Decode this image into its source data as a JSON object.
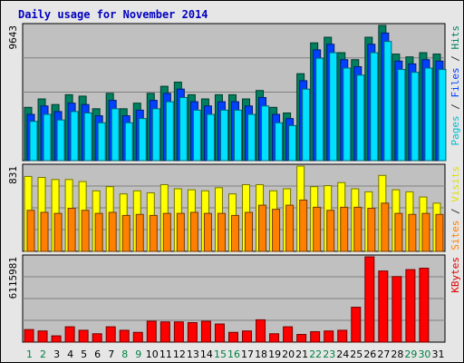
{
  "chart_data": {
    "type": "bar",
    "title": "Daily usage for November 2014",
    "categories": [
      "1",
      "2",
      "3",
      "4",
      "5",
      "6",
      "7",
      "8",
      "9",
      "10",
      "11",
      "12",
      "13",
      "14",
      "15",
      "16",
      "17",
      "18",
      "19",
      "20",
      "21",
      "22",
      "23",
      "24",
      "25",
      "26",
      "27",
      "28",
      "29",
      "30",
      "31"
    ],
    "weekend_days": [
      "1",
      "2",
      "8",
      "9",
      "15",
      "16",
      "22",
      "23",
      "29",
      "30"
    ],
    "panels": [
      {
        "name": "pages-files-hits",
        "ymax_label": "9643",
        "ymax": 9643,
        "right_labels": [
          {
            "text": "Pages",
            "color": "#00c0d0"
          },
          {
            "text": " / ",
            "color": "#333333"
          },
          {
            "text": "Files",
            "color": "#0040ff"
          },
          {
            "text": " / ",
            "color": "#333333"
          },
          {
            "text": "Hits",
            "color": "#008060"
          }
        ],
        "series": [
          {
            "name": "Hits",
            "color": "#008060",
            "values": [
              3800,
              4400,
              4000,
              4700,
              4600,
              3700,
              4800,
              3700,
              4100,
              4800,
              5300,
              5600,
              4700,
              4400,
              4700,
              4700,
              4400,
              5000,
              3800,
              3400,
              6200,
              8400,
              8800,
              7700,
              7200,
              8800,
              9643,
              7600,
              7400,
              7700,
              7600
            ]
          },
          {
            "name": "Files",
            "color": "#0040ff",
            "values": [
              3300,
              3900,
              3500,
              4100,
              4000,
              3200,
              4300,
              3200,
              3600,
              4300,
              4800,
              5100,
              4200,
              3900,
              4200,
              4200,
              3900,
              4500,
              3300,
              3000,
              5700,
              7900,
              8300,
              7200,
              6700,
              8300,
              9100,
              7100,
              6900,
              7200,
              7100
            ]
          },
          {
            "name": "Pages",
            "color": "#00e0ff",
            "values": [
              2800,
              3300,
              2900,
              3500,
              3400,
              2700,
              3700,
              2700,
              3000,
              3700,
              4200,
              4500,
              3600,
              3300,
              3600,
              3600,
              3300,
              3900,
              2700,
              2500,
              5100,
              7300,
              7700,
              6600,
              6100,
              7700,
              8500,
              6500,
              6300,
              6600,
              6500
            ]
          }
        ]
      },
      {
        "name": "sites-visits",
        "ymax_label": "831",
        "ymax": 831,
        "right_labels": [
          {
            "text": "Sites",
            "color": "#ff8000"
          },
          {
            "text": " / ",
            "color": "#333333"
          },
          {
            "text": "Visits",
            "color": "#e0e000"
          }
        ],
        "series": [
          {
            "name": "Visits",
            "color": "#ffff00",
            "values": [
              730,
              720,
              700,
              700,
              680,
              590,
              630,
              560,
              590,
              570,
              650,
              610,
              600,
              590,
              620,
              560,
              650,
              650,
              590,
              610,
              831,
              630,
              640,
              670,
              610,
              580,
              740,
              600,
              580,
              530,
              470
            ]
          },
          {
            "name": "Sites",
            "color": "#ff8000",
            "values": [
              400,
              380,
              370,
              420,
              400,
              370,
              380,
              350,
              360,
              350,
              370,
              370,
              380,
              370,
              370,
              350,
              380,
              450,
              410,
              450,
              500,
              430,
              400,
              430,
              430,
              420,
              470,
              370,
              360,
              370,
              360
            ]
          }
        ]
      },
      {
        "name": "kbytes",
        "ymax_label": "6115981",
        "ymax": 6115981,
        "right_labels": [
          {
            "text": "KBytes",
            "color": "#e00000"
          }
        ],
        "series": [
          {
            "name": "KBytes",
            "color": "#ff0000",
            "values": [
              900000,
              800000,
              450000,
              1100000,
              850000,
              600000,
              1100000,
              850000,
              700000,
              1500000,
              1450000,
              1450000,
              1400000,
              1500000,
              1300000,
              700000,
              800000,
              1600000,
              600000,
              1100000,
              550000,
              750000,
              800000,
              850000,
              2500000,
              6115981,
              5100000,
              4700000,
              5200000,
              5300000,
              0
            ]
          }
        ]
      }
    ]
  }
}
